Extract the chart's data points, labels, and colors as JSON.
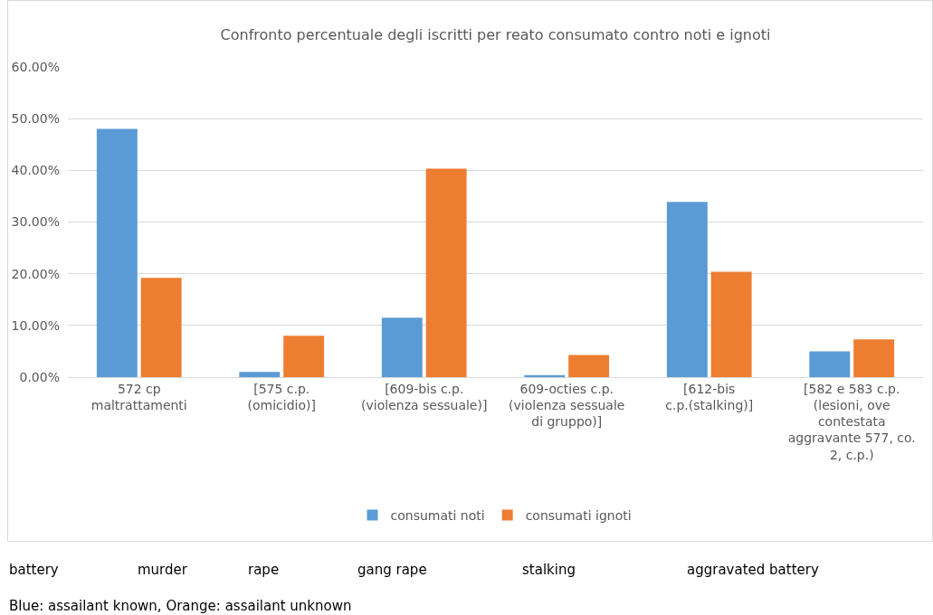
{
  "chart_data": {
    "type": "bar",
    "title": "Confronto percentuale degli iscritti per reato consumato contro noti e ignoti",
    "categories": [
      "572 cp maltrattamenti",
      "[575 c.p. (omicidio)]",
      "[609-bis c.p. (violenza sessuale)]",
      "609-octies c.p. (violenza sessuale di gruppo)]",
      "[612-bis c.p.(stalking)]",
      "[582 e 583 c.p. (lesioni, ove contestata aggravante 577, co. 2, c.p.)"
    ],
    "series": [
      {
        "name": "consumati noti",
        "color": "#5b9bd5",
        "values": [
          48.0,
          1.0,
          11.5,
          0.4,
          33.9,
          5.0
        ]
      },
      {
        "name": "consumati ignoti",
        "color": "#ed7d31",
        "values": [
          19.2,
          8.0,
          40.3,
          4.3,
          20.4,
          7.3
        ]
      }
    ],
    "ylim": [
      0,
      60
    ],
    "yticks": [
      {
        "value": 0,
        "label": "0.00%"
      },
      {
        "value": 10,
        "label": "10.00%"
      },
      {
        "value": 20,
        "label": "20.00%"
      },
      {
        "value": 30,
        "label": "30.00%"
      },
      {
        "value": 40,
        "label": "40.00%"
      },
      {
        "value": 50,
        "label": "50.00%"
      },
      {
        "value": 60,
        "label": "60.00%"
      }
    ],
    "grid": "y",
    "legend": "bottom",
    "annotations": [
      "battery",
      "murder",
      "rape",
      "gang rape",
      "stalking",
      "aggravated battery",
      "Blue: assailant known, Orange: assailant unknown"
    ]
  }
}
